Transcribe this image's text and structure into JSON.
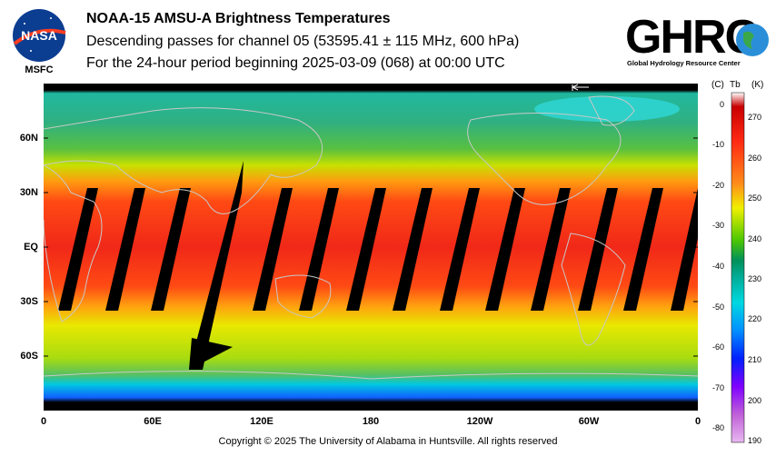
{
  "header": {
    "title": "NOAA-15 AMSU-A Brightness Temperatures",
    "subtitle1": "Descending passes for channel 05 (53595.41 ± 115 MHz, 600 hPa)",
    "subtitle2": "For the 24-hour period beginning 2025-03-09 (068) at 00:00 UTC"
  },
  "logos": {
    "nasa_text": "NASA",
    "nasa_center": "MSFC",
    "ghrc_text": "GHRC",
    "ghrc_caption": "Global Hydrology Resource Center"
  },
  "map": {
    "lat_labels": [
      "60N",
      "30N",
      "EQ",
      "30S",
      "60S"
    ],
    "lon_labels": [
      "0",
      "60E",
      "120E",
      "180",
      "120W",
      "60W",
      "0"
    ],
    "lat_values": [
      60,
      30,
      0,
      -30,
      -60
    ],
    "lon_values": [
      0,
      60,
      120,
      180,
      240,
      300,
      360
    ]
  },
  "colorbar": {
    "unit_c": "(C)",
    "unit_tb": "Tb",
    "unit_k": "(K)",
    "c_labels": [
      "0",
      "-10",
      "-20",
      "-30",
      "-40",
      "-50",
      "-60",
      "-70",
      "-80"
    ],
    "k_labels": [
      "270",
      "260",
      "250",
      "240",
      "230",
      "220",
      "210",
      "200",
      "190"
    ],
    "colors": [
      "#ffffff",
      "#d40000",
      "#ff3a1a",
      "#ff8c1a",
      "#e8e800",
      "#7ddc00",
      "#00a070",
      "#00c8c8",
      "#00a0ff",
      "#0030ff",
      "#8000ff",
      "#b04ad0",
      "#d8a0e0"
    ]
  },
  "footer": {
    "copyright": "Copyright © 2025 The University of Alabama in Huntsville.  All rights reserved"
  }
}
